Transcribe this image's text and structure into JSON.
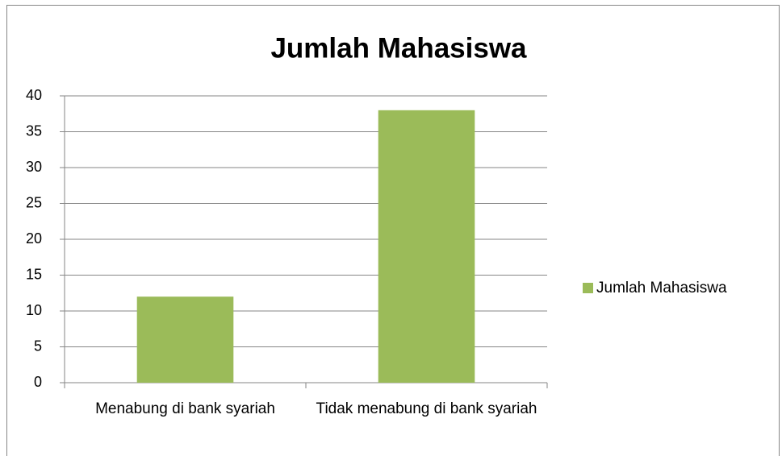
{
  "chart_data": {
    "type": "bar",
    "title": "Jumlah Mahasiswa",
    "categories": [
      "Menabung di bank syariah",
      "Tidak menabung di bank syariah"
    ],
    "series": [
      {
        "name": "Jumlah Mahasiswa",
        "color": "#9bbb59",
        "values": [
          12,
          38
        ]
      }
    ],
    "ylim": [
      0,
      40
    ],
    "yticks": [
      0,
      5,
      10,
      15,
      20,
      25,
      30,
      35,
      40
    ],
    "grid": true,
    "legend": "right"
  }
}
